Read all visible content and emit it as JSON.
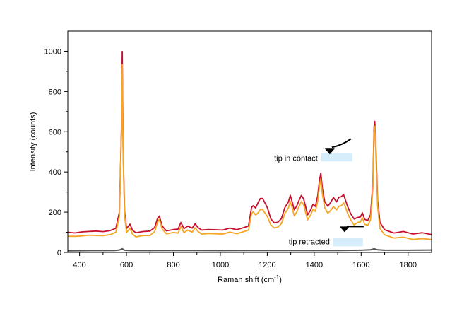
{
  "chart_data": {
    "type": "line",
    "title": "",
    "xlabel": "Raman shift (cm",
    "xlabel_sup": "-1",
    "xlabel_close": ")",
    "ylabel": "Intensity (counts)",
    "xlim": [
      350,
      1900
    ],
    "ylim": [
      0,
      1100
    ],
    "x_ticks": [
      400,
      600,
      800,
      1000,
      1200,
      1400,
      1600,
      1800
    ],
    "y_ticks": [
      0,
      200,
      400,
      600,
      800,
      1000
    ],
    "series": [
      {
        "name": "tip in contact (red)",
        "color": "#c8102e",
        "x": [
          350,
          380,
          410,
          440,
          470,
          500,
          530,
          555,
          570,
          578,
          582,
          586,
          592,
          600,
          615,
          625,
          640,
          670,
          700,
          720,
          732,
          740,
          752,
          770,
          800,
          820,
          832,
          845,
          860,
          880,
          892,
          905,
          920,
          950,
          980,
          1010,
          1040,
          1070,
          1100,
          1120,
          1133,
          1140,
          1150,
          1160,
          1170,
          1180,
          1190,
          1200,
          1215,
          1230,
          1245,
          1260,
          1275,
          1290,
          1298,
          1306,
          1315,
          1325,
          1335,
          1345,
          1355,
          1362,
          1372,
          1385,
          1395,
          1405,
          1415,
          1422,
          1428,
          1435,
          1445,
          1458,
          1470,
          1482,
          1495,
          1505,
          1515,
          1525,
          1533,
          1542,
          1555,
          1570,
          1585,
          1597,
          1605,
          1615,
          1628,
          1640,
          1650,
          1655,
          1658,
          1663,
          1670,
          1680,
          1700,
          1740,
          1780,
          1820,
          1860,
          1900
        ],
        "y": [
          100,
          95,
          105,
          100,
          110,
          100,
          110,
          120,
          200,
          600,
          995,
          500,
          200,
          120,
          140,
          110,
          100,
          100,
          110,
          120,
          170,
          180,
          130,
          110,
          110,
          120,
          145,
          120,
          130,
          120,
          145,
          120,
          115,
          110,
          115,
          110,
          120,
          115,
          120,
          135,
          220,
          235,
          220,
          245,
          270,
          265,
          250,
          220,
          170,
          145,
          150,
          170,
          220,
          255,
          280,
          255,
          210,
          230,
          260,
          280,
          270,
          230,
          190,
          210,
          240,
          230,
          280,
          360,
          390,
          320,
          250,
          230,
          250,
          270,
          255,
          270,
          280,
          285,
          260,
          230,
          190,
          170,
          170,
          180,
          195,
          165,
          160,
          185,
          350,
          620,
          655,
          500,
          260,
          150,
          110,
          100,
          100,
          95,
          95,
          90
        ]
      },
      {
        "name": "tip in contact (orange)",
        "color": "#f5a623",
        "x": [
          350,
          380,
          410,
          440,
          470,
          500,
          530,
          555,
          570,
          578,
          582,
          586,
          592,
          600,
          615,
          625,
          640,
          670,
          700,
          720,
          732,
          740,
          752,
          770,
          800,
          820,
          832,
          845,
          860,
          880,
          892,
          905,
          920,
          950,
          980,
          1010,
          1040,
          1070,
          1100,
          1120,
          1133,
          1140,
          1150,
          1160,
          1170,
          1180,
          1190,
          1200,
          1215,
          1230,
          1245,
          1260,
          1275,
          1290,
          1298,
          1306,
          1315,
          1325,
          1335,
          1345,
          1355,
          1362,
          1372,
          1385,
          1395,
          1405,
          1415,
          1422,
          1428,
          1435,
          1445,
          1458,
          1470,
          1482,
          1495,
          1505,
          1515,
          1525,
          1533,
          1542,
          1555,
          1570,
          1585,
          1597,
          1605,
          1615,
          1628,
          1640,
          1650,
          1655,
          1658,
          1663,
          1670,
          1680,
          1700,
          1740,
          1780,
          1820,
          1860,
          1900
        ],
        "y": [
          80,
          78,
          85,
          82,
          88,
          80,
          90,
          100,
          180,
          580,
          930,
          470,
          180,
          100,
          120,
          90,
          80,
          80,
          88,
          100,
          150,
          165,
          115,
          95,
          95,
          100,
          125,
          100,
          110,
          100,
          125,
          100,
          95,
          90,
          95,
          90,
          100,
          95,
          100,
          115,
          190,
          205,
          185,
          195,
          215,
          210,
          200,
          175,
          140,
          120,
          125,
          145,
          190,
          225,
          250,
          225,
          180,
          200,
          230,
          250,
          240,
          200,
          165,
          185,
          215,
          205,
          255,
          330,
          360,
          290,
          220,
          195,
          210,
          225,
          215,
          225,
          235,
          245,
          225,
          195,
          160,
          140,
          145,
          155,
          170,
          140,
          135,
          160,
          320,
          590,
          630,
          470,
          230,
          120,
          85,
          75,
          72,
          68,
          66,
          65
        ]
      },
      {
        "name": "tip retracted",
        "color": "#555555",
        "x": [
          350,
          450,
          550,
          570,
          582,
          592,
          620,
          700,
          800,
          900,
          1000,
          1100,
          1200,
          1300,
          1400,
          1500,
          1600,
          1640,
          1655,
          1670,
          1700,
          1800,
          1900
        ],
        "y": [
          8,
          9,
          10,
          12,
          18,
          11,
          9,
          9,
          10,
          10,
          9,
          10,
          10,
          10,
          10,
          10,
          11,
          13,
          18,
          13,
          11,
          11,
          12
        ]
      }
    ],
    "annotations": [
      {
        "text": "tip in contact",
        "x_data": 1430,
        "y_data": 470
      },
      {
        "text": "tip retracted",
        "x_data": 1430,
        "y_data": 55
      }
    ]
  }
}
